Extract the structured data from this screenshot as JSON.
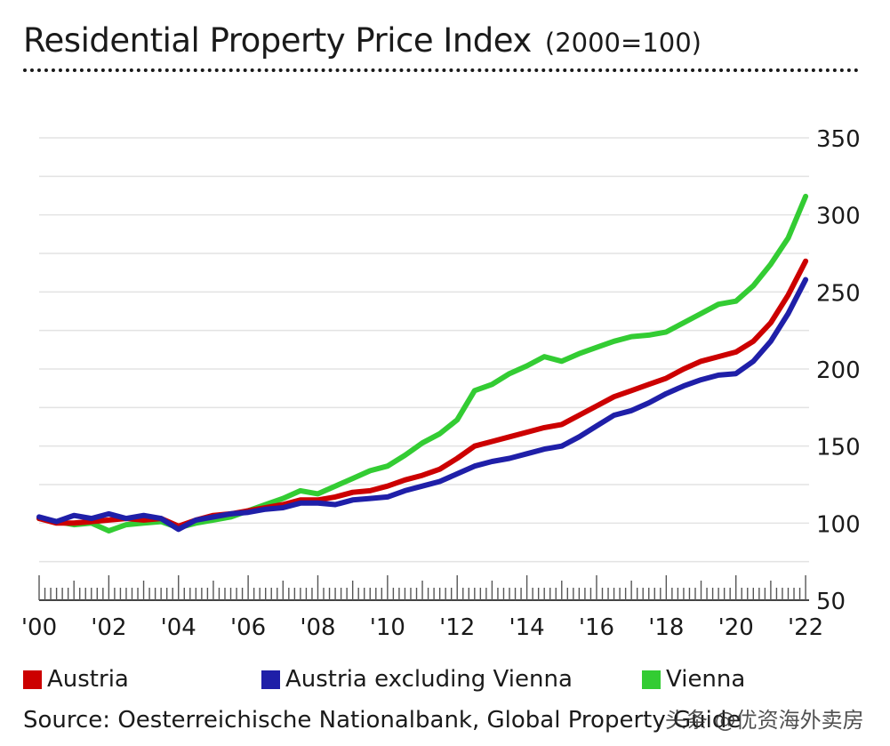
{
  "title": "Residential Property Price Index",
  "subtitle": "(2000=100)",
  "source": "Source: Oesterreichische Nationalbank, Global Property Guide",
  "watermark": "头条 @优资海外卖房",
  "colors": {
    "austria": "#cc0000",
    "excl_vienna": "#1f1fa8",
    "vienna": "#33cc33",
    "grid": "#e3e3e3",
    "text": "#1a1a1a"
  },
  "chart_data": {
    "type": "line",
    "title": "Residential Property Price Index (2000=100)",
    "xlabel": "",
    "ylabel": "",
    "ylim": [
      50,
      350
    ],
    "xlim": [
      2000,
      2022.1
    ],
    "y_ticks": [
      50,
      100,
      150,
      200,
      250,
      300,
      350
    ],
    "x_ticks": [
      {
        "label": "'00",
        "value": 2000
      },
      {
        "label": "'02",
        "value": 2002
      },
      {
        "label": "'04",
        "value": 2004
      },
      {
        "label": "'06",
        "value": 2006
      },
      {
        "label": "'08",
        "value": 2008
      },
      {
        "label": "'10",
        "value": 2010
      },
      {
        "label": "'12",
        "value": 2012
      },
      {
        "label": "'14",
        "value": 2014
      },
      {
        "label": "'16",
        "value": 2016
      },
      {
        "label": "'18",
        "value": 2018
      },
      {
        "label": "'20",
        "value": 2020
      },
      {
        "label": "'22",
        "value": 2022
      }
    ],
    "grid": true,
    "legend_position": "bottom",
    "series": [
      {
        "name": "Vienna",
        "color": "#33cc33",
        "x": [
          2000,
          2000.5,
          2001,
          2001.5,
          2002,
          2002.5,
          2003,
          2003.5,
          2004,
          2004.5,
          2005,
          2005.5,
          2006,
          2006.5,
          2007,
          2007.5,
          2008,
          2008.5,
          2009,
          2009.5,
          2010,
          2010.5,
          2011,
          2011.5,
          2012,
          2012.5,
          2013,
          2013.5,
          2014,
          2014.5,
          2015,
          2015.5,
          2016,
          2016.5,
          2017,
          2017.5,
          2018,
          2018.5,
          2019,
          2019.5,
          2020,
          2020.5,
          2021,
          2021.5,
          2022
        ],
        "values": [
          103,
          101,
          99,
          100,
          95,
          99,
          100,
          101,
          97,
          100,
          102,
          104,
          108,
          112,
          116,
          121,
          119,
          124,
          129,
          134,
          137,
          144,
          152,
          158,
          167,
          186,
          190,
          197,
          202,
          208,
          205,
          210,
          214,
          218,
          221,
          222,
          224,
          230,
          236,
          242,
          244,
          254,
          268,
          285,
          312
        ]
      },
      {
        "name": "Austria",
        "color": "#cc0000",
        "x": [
          2000,
          2000.5,
          2001,
          2001.5,
          2002,
          2002.5,
          2003,
          2003.5,
          2004,
          2004.5,
          2005,
          2005.5,
          2006,
          2006.5,
          2007,
          2007.5,
          2008,
          2008.5,
          2009,
          2009.5,
          2010,
          2010.5,
          2011,
          2011.5,
          2012,
          2012.5,
          2013,
          2013.5,
          2014,
          2014.5,
          2015,
          2015.5,
          2016,
          2016.5,
          2017,
          2017.5,
          2018,
          2018.5,
          2019,
          2019.5,
          2020,
          2020.5,
          2021,
          2021.5,
          2022
        ],
        "values": [
          103,
          100,
          100,
          101,
          102,
          103,
          102,
          103,
          98,
          102,
          105,
          106,
          108,
          110,
          112,
          115,
          115,
          117,
          120,
          121,
          124,
          128,
          131,
          135,
          142,
          150,
          153,
          156,
          159,
          162,
          164,
          170,
          176,
          182,
          186,
          190,
          194,
          200,
          205,
          208,
          211,
          218,
          230,
          248,
          270
        ]
      },
      {
        "name": "Austria excluding Vienna",
        "color": "#1f1fa8",
        "x": [
          2000,
          2000.5,
          2001,
          2001.5,
          2002,
          2002.5,
          2003,
          2003.5,
          2004,
          2004.5,
          2005,
          2005.5,
          2006,
          2006.5,
          2007,
          2007.5,
          2008,
          2008.5,
          2009,
          2009.5,
          2010,
          2010.5,
          2011,
          2011.5,
          2012,
          2012.5,
          2013,
          2013.5,
          2014,
          2014.5,
          2015,
          2015.5,
          2016,
          2016.5,
          2017,
          2017.5,
          2018,
          2018.5,
          2019,
          2019.5,
          2020,
          2020.5,
          2021,
          2021.5,
          2022
        ],
        "values": [
          104,
          101,
          105,
          103,
          106,
          103,
          105,
          103,
          96,
          102,
          104,
          106,
          107,
          109,
          110,
          113,
          113,
          112,
          115,
          116,
          117,
          121,
          124,
          127,
          132,
          137,
          140,
          142,
          145,
          148,
          150,
          156,
          163,
          170,
          173,
          178,
          184,
          189,
          193,
          196,
          197,
          205,
          218,
          236,
          258
        ]
      }
    ]
  }
}
